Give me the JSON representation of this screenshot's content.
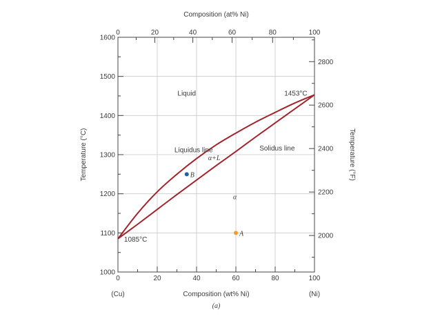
{
  "chart_data": {
    "type": "line",
    "title": "",
    "top_axis_label": "Composition (at% Ni)",
    "xlabel": "Composition (wt% Ni)",
    "ylabel": "Temperature (°C)",
    "y2label": "Temperature (°F)",
    "figure_label": "(a)",
    "xlim": [
      0,
      100
    ],
    "ylim": [
      1000,
      1600
    ],
    "x_ticks": [
      0,
      20,
      40,
      60,
      80,
      100
    ],
    "y_ticks": [
      1000,
      1100,
      1200,
      1300,
      1400,
      1500,
      1600
    ],
    "top_x_ticks": [
      0,
      20,
      40,
      60,
      80,
      100
    ],
    "y2_ticks": [
      2000,
      2200,
      2400,
      2600,
      2800
    ],
    "grid": true,
    "x_end_labels": {
      "left": "(Cu)",
      "right": "(Ni)"
    },
    "series": [
      {
        "name": "Liquidus line",
        "color": "#a3232b",
        "x": [
          0,
          10,
          20,
          30,
          40,
          50,
          60,
          70,
          80,
          90,
          100
        ],
        "y": [
          1085,
          1150,
          1205,
          1250,
          1290,
          1325,
          1355,
          1383,
          1408,
          1432,
          1453
        ]
      },
      {
        "name": "Solidus line",
        "color": "#a3232b",
        "x": [
          0,
          10,
          20,
          30,
          40,
          50,
          60,
          70,
          80,
          90,
          100
        ],
        "y": [
          1085,
          1122,
          1160,
          1198,
          1235,
          1272,
          1308,
          1345,
          1381,
          1417,
          1453
        ]
      }
    ],
    "points": [
      {
        "label": "B",
        "x": 35,
        "y": 1250,
        "color": "#1f5fa8"
      },
      {
        "label": "A",
        "x": 60,
        "y": 1100,
        "color": "#f39a2b"
      }
    ],
    "annotations": [
      {
        "text": "Liquid",
        "x": 35,
        "y": 1457
      },
      {
        "text": "1453°C",
        "x": 90.5,
        "y": 1457
      },
      {
        "text": "Liquidus line",
        "x": 38.5,
        "y": 1312
      },
      {
        "text": "Solidus line",
        "x": 81,
        "y": 1317
      },
      {
        "text": "α+L",
        "x": 49,
        "y": 1292
      },
      {
        "text": "α",
        "x": 59.5,
        "y": 1192
      },
      {
        "text": "1085°C",
        "x": 9,
        "y": 1084
      }
    ]
  }
}
